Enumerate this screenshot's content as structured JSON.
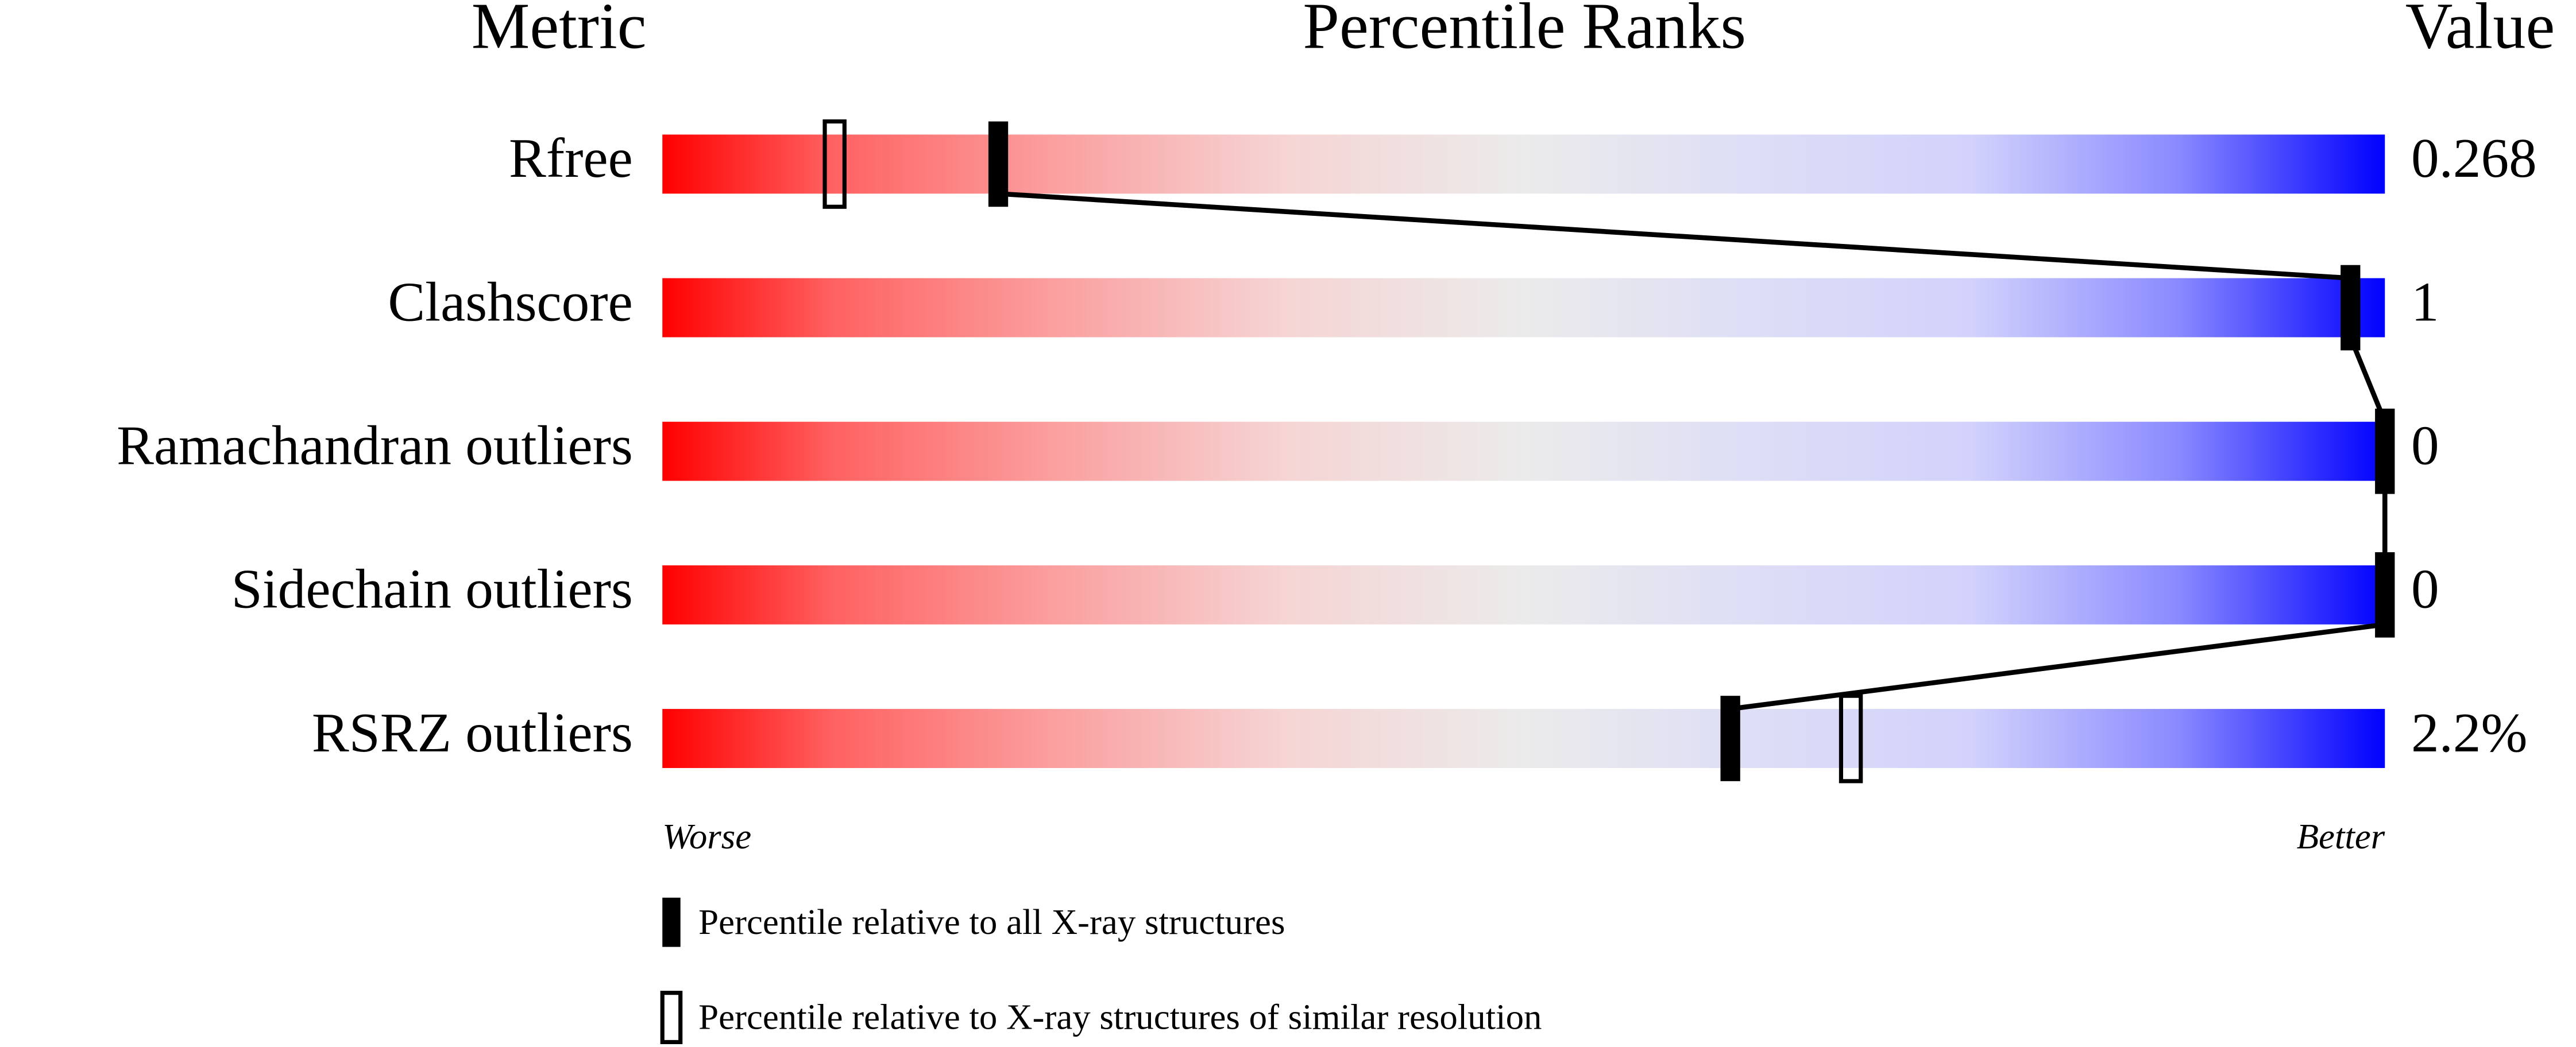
{
  "chart_data": {
    "type": "percentile-slider",
    "headers": [
      "Metric",
      "Percentile Ranks",
      "Value"
    ],
    "categories": [
      "Rfree",
      "Clashscore",
      "Ramachandran outliers",
      "Sidechain outliers",
      "RSRZ outliers"
    ],
    "metric_values": [
      "0.268",
      "1",
      "0",
      "0",
      "2.2%"
    ],
    "xlim": [
      0,
      100
    ],
    "axis_labels": [
      "Worse",
      "Better"
    ],
    "series": [
      {
        "name": "Percentile relative to all X-ray structures",
        "color": "#000000",
        "marker": "filled",
        "connect": true,
        "values": [
          19.5,
          98,
          100,
          100,
          62
        ]
      },
      {
        "name": "Percentile relative to X-ray structures of similar resolution",
        "color": "#000000",
        "marker": "outline",
        "connect": false,
        "values": [
          10,
          null,
          null,
          null,
          69
        ]
      }
    ]
  }
}
